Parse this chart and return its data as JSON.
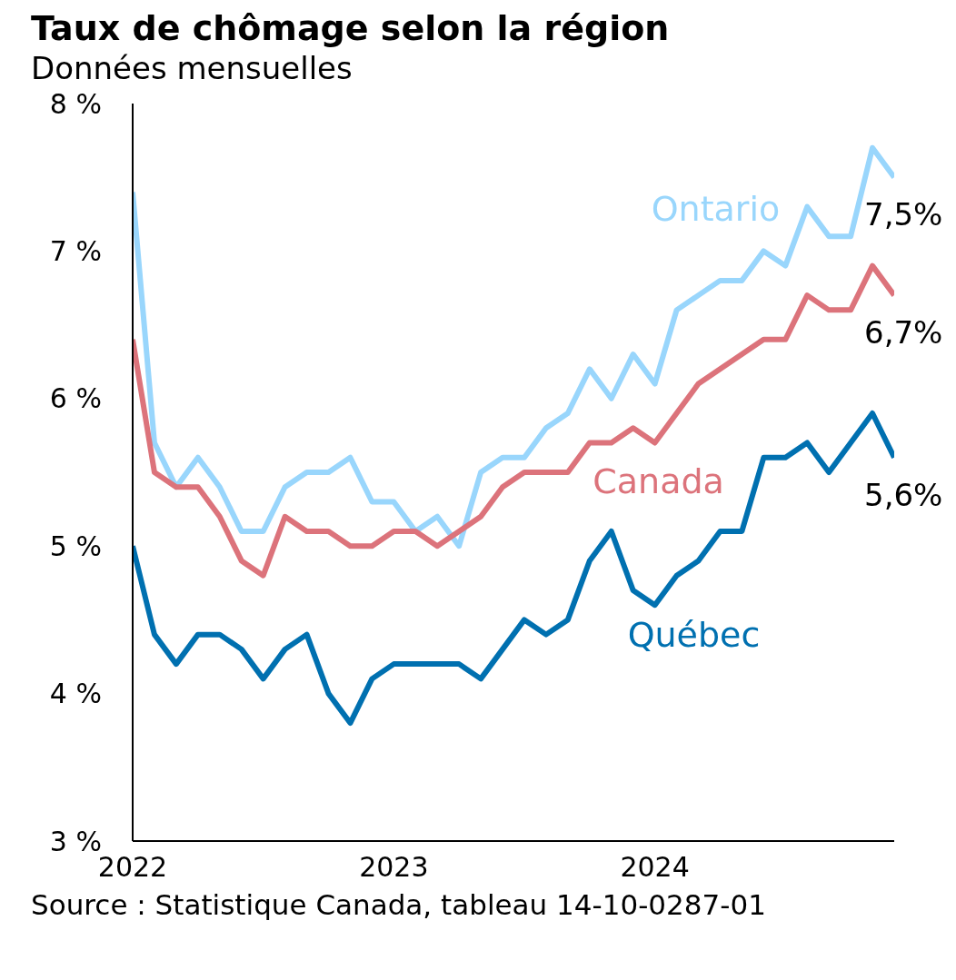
{
  "chart_data": {
    "type": "line",
    "title": "Taux de chômage selon la région",
    "subtitle": "Données mensuelles",
    "annotations": [
      "Source : Statistique Canada, tableau 14-10-0287-01"
    ],
    "x": [
      "2022-01",
      "2022-02",
      "2022-03",
      "2022-04",
      "2022-05",
      "2022-06",
      "2022-07",
      "2022-08",
      "2022-09",
      "2022-10",
      "2022-11",
      "2022-12",
      "2023-01",
      "2023-02",
      "2023-03",
      "2023-04",
      "2023-05",
      "2023-06",
      "2023-07",
      "2023-08",
      "2023-09",
      "2023-10",
      "2023-11",
      "2023-12",
      "2024-01",
      "2024-02",
      "2024-03",
      "2024-04",
      "2024-05",
      "2024-06",
      "2024-07",
      "2024-08",
      "2024-09",
      "2024-10",
      "2024-11",
      "2024-12"
    ],
    "xlim": [
      "2022-01",
      "2024-12"
    ],
    "xticks": [
      {
        "value": "2022-01",
        "label": "2022"
      },
      {
        "value": "2023-01",
        "label": "2023"
      },
      {
        "value": "2024-01",
        "label": "2024"
      }
    ],
    "ylim": [
      3,
      8
    ],
    "yticks": [
      {
        "value": 3,
        "label": "3 %"
      },
      {
        "value": 4,
        "label": "4 %"
      },
      {
        "value": 5,
        "label": "5 %"
      },
      {
        "value": 6,
        "label": "6 %"
      },
      {
        "value": 7,
        "label": "7 %"
      },
      {
        "value": 8,
        "label": "8 %"
      }
    ],
    "grid": false,
    "legend": false,
    "marker": "none",
    "line_style": "solid",
    "series": [
      {
        "name": "Ontario",
        "color": "#99d6fc",
        "values": [
          7.4,
          5.7,
          5.4,
          5.6,
          5.4,
          5.1,
          5.1,
          5.4,
          5.5,
          5.5,
          5.6,
          5.3,
          5.3,
          5.1,
          5.2,
          5.0,
          5.5,
          5.6,
          5.6,
          5.8,
          5.9,
          6.2,
          6.0,
          6.3,
          6.1,
          6.6,
          6.7,
          6.8,
          6.8,
          7.0,
          6.9,
          7.3,
          7.1,
          7.1,
          7.7,
          7.5
        ],
        "value_labels": [
          null,
          null,
          null,
          null,
          null,
          null,
          null,
          null,
          null,
          null,
          null,
          null,
          null,
          null,
          null,
          null,
          null,
          null,
          null,
          null,
          null,
          null,
          null,
          null,
          null,
          null,
          null,
          null,
          null,
          null,
          null,
          null,
          null,
          null,
          null,
          "7,5%"
        ]
      },
      {
        "name": "Canada",
        "color": "#dc737b",
        "values": [
          6.4,
          5.5,
          5.4,
          5.4,
          5.2,
          4.9,
          4.8,
          5.2,
          5.1,
          5.1,
          5.0,
          5.0,
          5.1,
          5.1,
          5.0,
          5.1,
          5.2,
          5.4,
          5.5,
          5.5,
          5.5,
          5.7,
          5.7,
          5.8,
          5.7,
          5.9,
          6.1,
          6.2,
          6.3,
          6.4,
          6.4,
          6.7,
          6.6,
          6.6,
          6.9,
          6.7
        ],
        "value_labels": [
          null,
          null,
          null,
          null,
          null,
          null,
          null,
          null,
          null,
          null,
          null,
          null,
          null,
          null,
          null,
          null,
          null,
          null,
          null,
          null,
          null,
          null,
          null,
          null,
          null,
          null,
          null,
          null,
          null,
          null,
          null,
          null,
          null,
          null,
          null,
          "6,7%"
        ]
      },
      {
        "name": "Québec",
        "color": "#0070b0",
        "values": [
          5.0,
          4.4,
          4.2,
          4.4,
          4.4,
          4.3,
          4.1,
          4.3,
          4.4,
          4.0,
          3.8,
          4.1,
          4.2,
          4.2,
          4.2,
          4.2,
          4.1,
          4.3,
          4.5,
          4.4,
          4.5,
          4.9,
          5.1,
          4.7,
          4.6,
          4.8,
          4.9,
          5.1,
          5.1,
          5.6,
          5.6,
          5.7,
          5.5,
          5.7,
          5.9,
          5.6
        ],
        "value_labels": [
          null,
          null,
          null,
          null,
          null,
          null,
          null,
          null,
          null,
          null,
          null,
          null,
          null,
          null,
          null,
          null,
          null,
          null,
          null,
          null,
          null,
          null,
          null,
          null,
          null,
          null,
          null,
          null,
          null,
          null,
          null,
          null,
          null,
          null,
          null,
          "5,6%"
        ]
      }
    ]
  }
}
